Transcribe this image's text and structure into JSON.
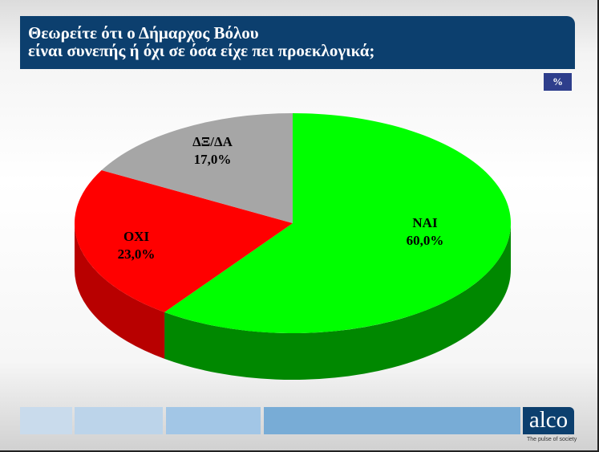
{
  "title_line1": "Θεωρείτε ότι ο Δήμαρχος Βόλου",
  "title_line2": "είναι συνεπής ή όχι σε όσα είχε πει προεκλογικά;",
  "unit_badge": "%",
  "chart_data": {
    "type": "pie",
    "style": "3d",
    "start": "top",
    "direction": "clockwise",
    "slices": [
      {
        "label": "ΝΑΙ",
        "value": 60.0,
        "value_label": "60,0%",
        "color": "#00ff00",
        "side_color": "#008800"
      },
      {
        "label": "ΟΧΙ",
        "value": 23.0,
        "value_label": "23,0%",
        "color": "#ff0000",
        "side_color": "#b80000"
      },
      {
        "label": "ΔΞ/ΔΑ",
        "value": 17.0,
        "value_label": "17,0%",
        "color": "#a6a6a6",
        "side_color": "#6e6e6e"
      }
    ]
  },
  "footer": {
    "logo": "alco",
    "tagline": "The pulse of society",
    "bar_colors": [
      "#c9dbec",
      "#bcd4ea",
      "#a2c6e6",
      "#78acd6"
    ]
  }
}
